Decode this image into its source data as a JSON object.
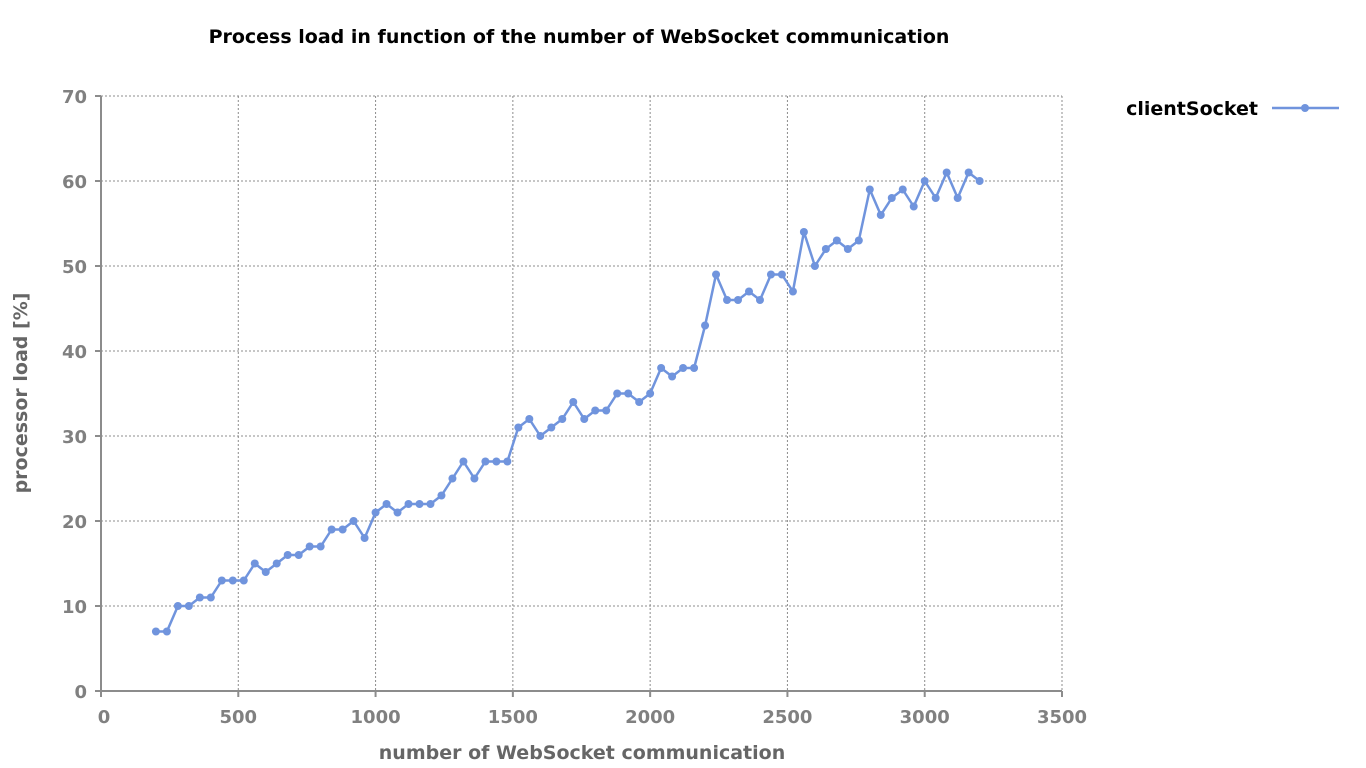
{
  "chart_data": {
    "type": "line",
    "title": "Process load in function of the number of WebSocket communication",
    "xlabel": "number of WebSocket communication",
    "ylabel": "processor load [%]",
    "xlim": [
      0,
      3500
    ],
    "ylim": [
      0,
      70
    ],
    "x_ticks": [
      "0",
      "500",
      "1000",
      "1500",
      "2000",
      "2500",
      "3000",
      "3500"
    ],
    "y_ticks": [
      "0",
      "10",
      "20",
      "30",
      "40",
      "50",
      "60",
      "70"
    ],
    "grid": true,
    "legend_position": "top-right",
    "series": [
      {
        "name": "clientSocket",
        "color": "#7094dd",
        "marker": "circle",
        "x": [
          200,
          240,
          280,
          320,
          360,
          400,
          440,
          480,
          520,
          560,
          600,
          640,
          680,
          720,
          760,
          800,
          840,
          880,
          920,
          960,
          1000,
          1040,
          1080,
          1120,
          1160,
          1200,
          1240,
          1280,
          1320,
          1360,
          1400,
          1440,
          1480,
          1520,
          1560,
          1600,
          1640,
          1680,
          1720,
          1760,
          1800,
          1840,
          1880,
          1920,
          1960,
          2000,
          2040,
          2080,
          2120,
          2160,
          2200,
          2240,
          2280,
          2320,
          2360,
          2400,
          2440,
          2480,
          2520,
          2560,
          2600,
          2640,
          2680,
          2720,
          2760,
          2800,
          2840,
          2880,
          2920,
          2960,
          3000,
          3040,
          3080,
          3120,
          3160,
          3200
        ],
        "y": [
          7,
          7,
          10,
          10,
          11,
          11,
          13,
          13,
          13,
          15,
          14,
          15,
          16,
          16,
          17,
          17,
          19,
          19,
          20,
          18,
          21,
          22,
          21,
          22,
          22,
          22,
          23,
          25,
          27,
          25,
          27,
          27,
          27,
          31,
          32,
          30,
          31,
          32,
          34,
          32,
          33,
          33,
          35,
          35,
          34,
          35,
          38,
          37,
          38,
          38,
          43,
          49,
          46,
          46,
          47,
          46,
          49,
          49,
          47,
          54,
          50,
          52,
          53,
          52,
          53,
          59,
          56,
          58,
          59,
          57,
          60,
          58,
          61,
          58,
          61,
          60
        ]
      }
    ]
  }
}
